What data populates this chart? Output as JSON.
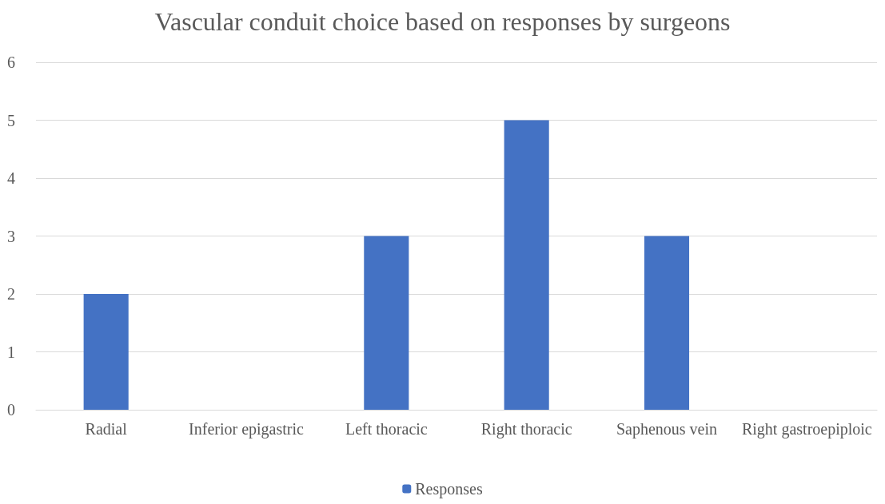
{
  "chart_data": {
    "type": "bar",
    "title": "Vascular conduit choice based on responses by surgeons",
    "categories": [
      "Radial",
      "Inferior epigastric",
      "Left thoracic",
      "Right thoracic",
      "Saphenous vein",
      "Right gastroepiploic"
    ],
    "series": [
      {
        "name": "Responses",
        "color": "#4472c4",
        "values": [
          2,
          0,
          3,
          5,
          3,
          0
        ]
      }
    ],
    "ylim": [
      0,
      6
    ],
    "yticks": [
      0,
      1,
      2,
      3,
      4,
      5,
      6
    ],
    "grid": "y",
    "legend": "bottom"
  }
}
